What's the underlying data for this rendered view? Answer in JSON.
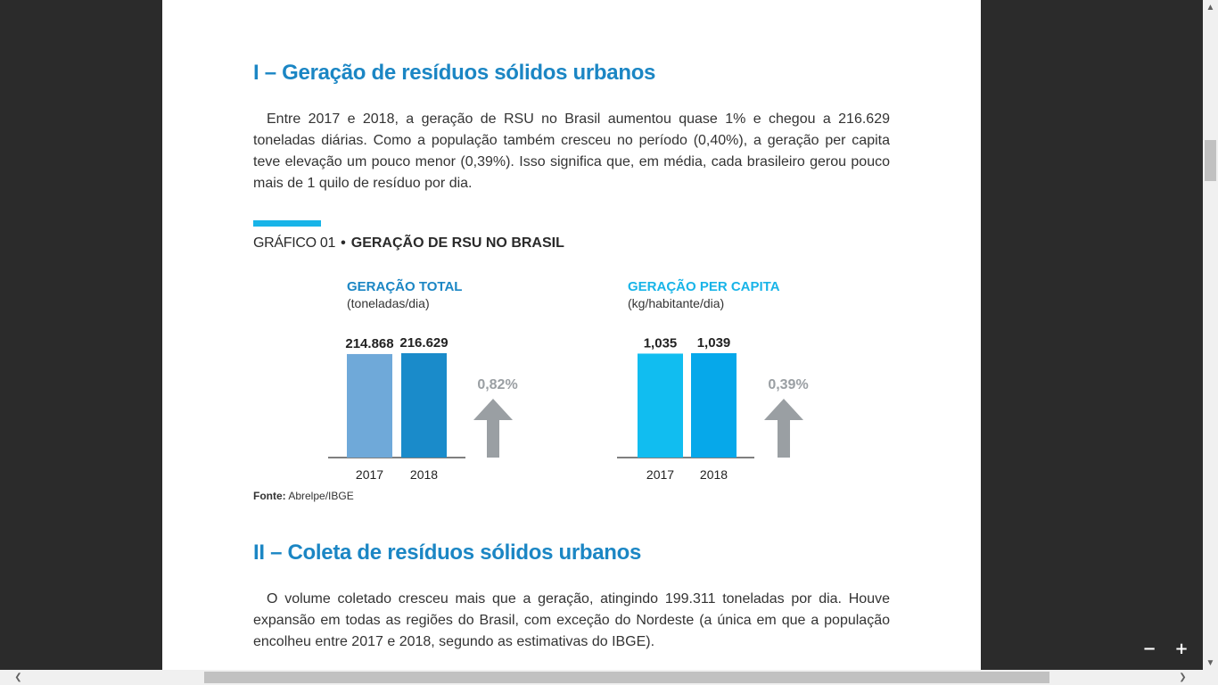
{
  "colors": {
    "heading": "#1b86c4",
    "accent_bar": "#18b4e8",
    "bar_total_2017": "#6fa9d9",
    "bar_total_2018": "#1a8bca",
    "bar_capita_2017": "#11bdf0",
    "bar_capita_2018": "#06a8ea",
    "arrow": "#9a9fa3",
    "panel_title_total": "#1b86c4",
    "panel_title_capita": "#18b4e8"
  },
  "section1": {
    "title": "I – Geração de resíduos sólidos urbanos",
    "paragraph": "Entre 2017 e 2018, a geração de RSU no Brasil aumentou quase 1% e chegou a 216.629 toneladas diárias. Como a população também cresceu no período (0,40%), a geração per capita teve elevação um pouco menor (0,39%). Isso significa que, em média, cada brasileiro gerou pouco mais de 1 quilo de resíduo por dia."
  },
  "chart_heading": {
    "number": "GRÁFICO 01",
    "bullet": "•",
    "name": "GERAÇÃO DE RSU NO BRASIL"
  },
  "panels": {
    "total": {
      "title": "GERAÇÃO TOTAL",
      "unit": "(toneladas/dia)"
    },
    "capita": {
      "title": "GERAÇÃO PER CAPITA",
      "unit": "(kg/habitante/dia)"
    }
  },
  "chart_data": [
    {
      "type": "bar",
      "title": "GERAÇÃO TOTAL",
      "subtitle": "(toneladas/dia)",
      "categories": [
        "2017",
        "2018"
      ],
      "values": [
        214868,
        216629
      ],
      "value_labels": [
        "214.868",
        "216.629"
      ],
      "change_label": "0,82%",
      "ylim": [
        0,
        216629
      ]
    },
    {
      "type": "bar",
      "title": "GERAÇÃO PER CAPITA",
      "subtitle": "(kg/habitante/dia)",
      "categories": [
        "2017",
        "2018"
      ],
      "values": [
        1.035,
        1.039
      ],
      "value_labels": [
        "1,035",
        "1,039"
      ],
      "change_label": "0,39%",
      "ylim": [
        0,
        1.039
      ]
    }
  ],
  "source": {
    "label": "Fonte:",
    "text": "Abrelpe/IBGE"
  },
  "section2": {
    "title": "II – Coleta de resíduos sólidos urbanos",
    "paragraph": "O volume coletado cresceu mais que a geração, atingindo 199.311 toneladas por dia. Houve expansão em todas as regiões do Brasil, com exceção do Nordeste (a única em que a população encolheu entre 2017 e 2018, segundo as estimativas do IBGE)."
  },
  "viewer": {
    "zoom_out": "−",
    "zoom_in": "+",
    "scroll_up_icon": "triangle-up",
    "scroll_down_icon": "triangle-down",
    "scroll_left_icon": "chevron-left",
    "scroll_right_icon": "chevron-right"
  }
}
